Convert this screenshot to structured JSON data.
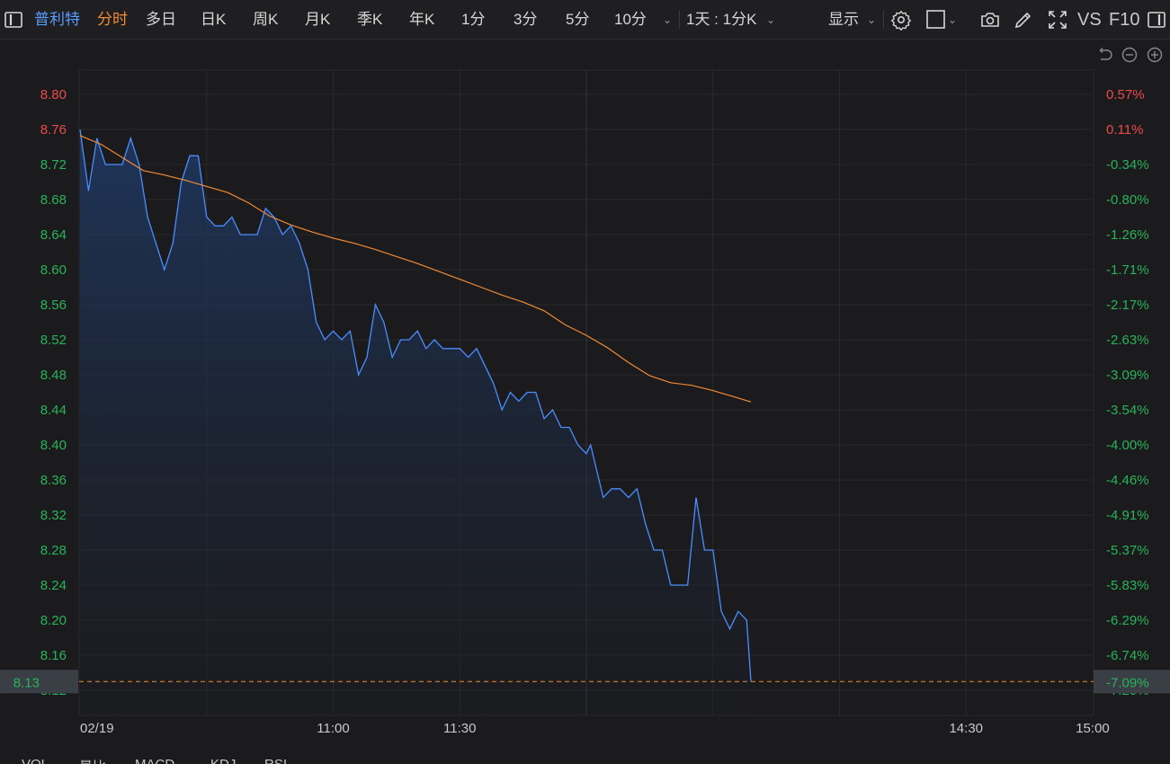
{
  "toolbar": {
    "stock_name": "普利特",
    "tabs": [
      "分时",
      "多日",
      "日K",
      "周K",
      "月K",
      "季K",
      "年K",
      "1分",
      "3分",
      "5分",
      "10分"
    ],
    "period_select": "1天 : 1分K",
    "display_menu": "显示",
    "vs_label": "VS",
    "f10_label": "F10"
  },
  "bottom_tabs": [
    "VOL",
    "量比",
    "MACD",
    "KDJ",
    "RSI"
  ],
  "colors": {
    "background": "#1b1b1d",
    "price_line": "#4a8dff",
    "avg_line": "#f08a35",
    "up": "#e84b4b",
    "down": "#28b35a",
    "active_tab": "#f08a35",
    "stock_name": "#5a9cff"
  },
  "chart_data": {
    "type": "line",
    "date_label": "02/19",
    "x_time_labels": [
      "11:00",
      "11:30",
      "14:30",
      "15:00"
    ],
    "y_price_ticks": [
      "8.80",
      "8.76",
      "8.72",
      "8.68",
      "8.64",
      "8.60",
      "8.56",
      "8.52",
      "8.48",
      "8.44",
      "8.40",
      "8.36",
      "8.32",
      "8.28",
      "8.24",
      "8.20",
      "8.16",
      "8.12"
    ],
    "y_pct_ticks": [
      "0.57%",
      "0.11%",
      "-0.34%",
      "-0.80%",
      "-1.26%",
      "-1.71%",
      "-2.17%",
      "-2.63%",
      "-3.09%",
      "-3.54%",
      "-4.00%",
      "-4.46%",
      "-4.91%",
      "-5.37%",
      "-5.83%",
      "-6.29%",
      "-6.74%",
      "-7.20%"
    ],
    "ylim": [
      8.12,
      8.8
    ],
    "prev_close": 8.75,
    "current_price": "8.13",
    "current_pct": "-7.09%",
    "minutes_total": 240,
    "price_minutes": [
      0,
      2,
      4,
      6,
      8,
      10,
      12,
      14,
      16,
      18,
      20,
      22,
      24,
      26,
      28,
      30,
      32,
      34,
      36,
      38,
      40,
      42,
      44,
      46,
      48,
      50,
      52,
      54,
      56,
      58,
      60,
      62,
      64,
      66,
      68,
      70,
      72,
      74,
      76,
      78,
      80,
      82,
      84,
      86,
      88,
      90,
      92,
      94,
      96,
      98,
      100,
      102,
      104,
      106,
      108,
      110,
      112,
      114,
      116,
      118,
      120,
      121,
      122,
      123,
      124,
      126,
      128,
      130,
      132,
      134,
      136,
      138,
      140,
      142,
      144,
      146,
      148,
      150,
      152,
      154,
      156,
      158,
      159
    ],
    "price": [
      8.76,
      8.69,
      8.75,
      8.72,
      8.72,
      8.72,
      8.75,
      8.72,
      8.66,
      8.63,
      8.6,
      8.63,
      8.7,
      8.73,
      8.73,
      8.66,
      8.65,
      8.65,
      8.66,
      8.64,
      8.64,
      8.64,
      8.67,
      8.66,
      8.64,
      8.65,
      8.63,
      8.6,
      8.54,
      8.52,
      8.53,
      8.52,
      8.53,
      8.48,
      8.5,
      8.56,
      8.54,
      8.5,
      8.52,
      8.52,
      8.53,
      8.51,
      8.52,
      8.51,
      8.51,
      8.51,
      8.5,
      8.51,
      8.49,
      8.47,
      8.44,
      8.46,
      8.45,
      8.46,
      8.46,
      8.43,
      8.44,
      8.42,
      8.42,
      8.4,
      8.39,
      8.4,
      8.38,
      8.36,
      8.34,
      8.35,
      8.35,
      8.34,
      8.35,
      8.31,
      8.28,
      8.28,
      8.24,
      8.24,
      8.24,
      8.34,
      8.28,
      8.28,
      8.21,
      8.19,
      8.21,
      8.2,
      8.13
    ],
    "avg_minutes": [
      0,
      5,
      10,
      15,
      20,
      25,
      30,
      35,
      40,
      45,
      50,
      55,
      60,
      65,
      70,
      75,
      80,
      85,
      90,
      95,
      100,
      105,
      110,
      115,
      120,
      125,
      130,
      135,
      140,
      145,
      150,
      155,
      159
    ],
    "avg_price": [
      8.753,
      8.743,
      8.728,
      8.713,
      8.708,
      8.702,
      8.695,
      8.688,
      8.676,
      8.661,
      8.651,
      8.643,
      8.636,
      8.63,
      8.623,
      8.615,
      8.607,
      8.598,
      8.589,
      8.58,
      8.571,
      8.563,
      8.553,
      8.537,
      8.525,
      8.511,
      8.494,
      8.479,
      8.471,
      8.468,
      8.462,
      8.455,
      8.449
    ]
  }
}
